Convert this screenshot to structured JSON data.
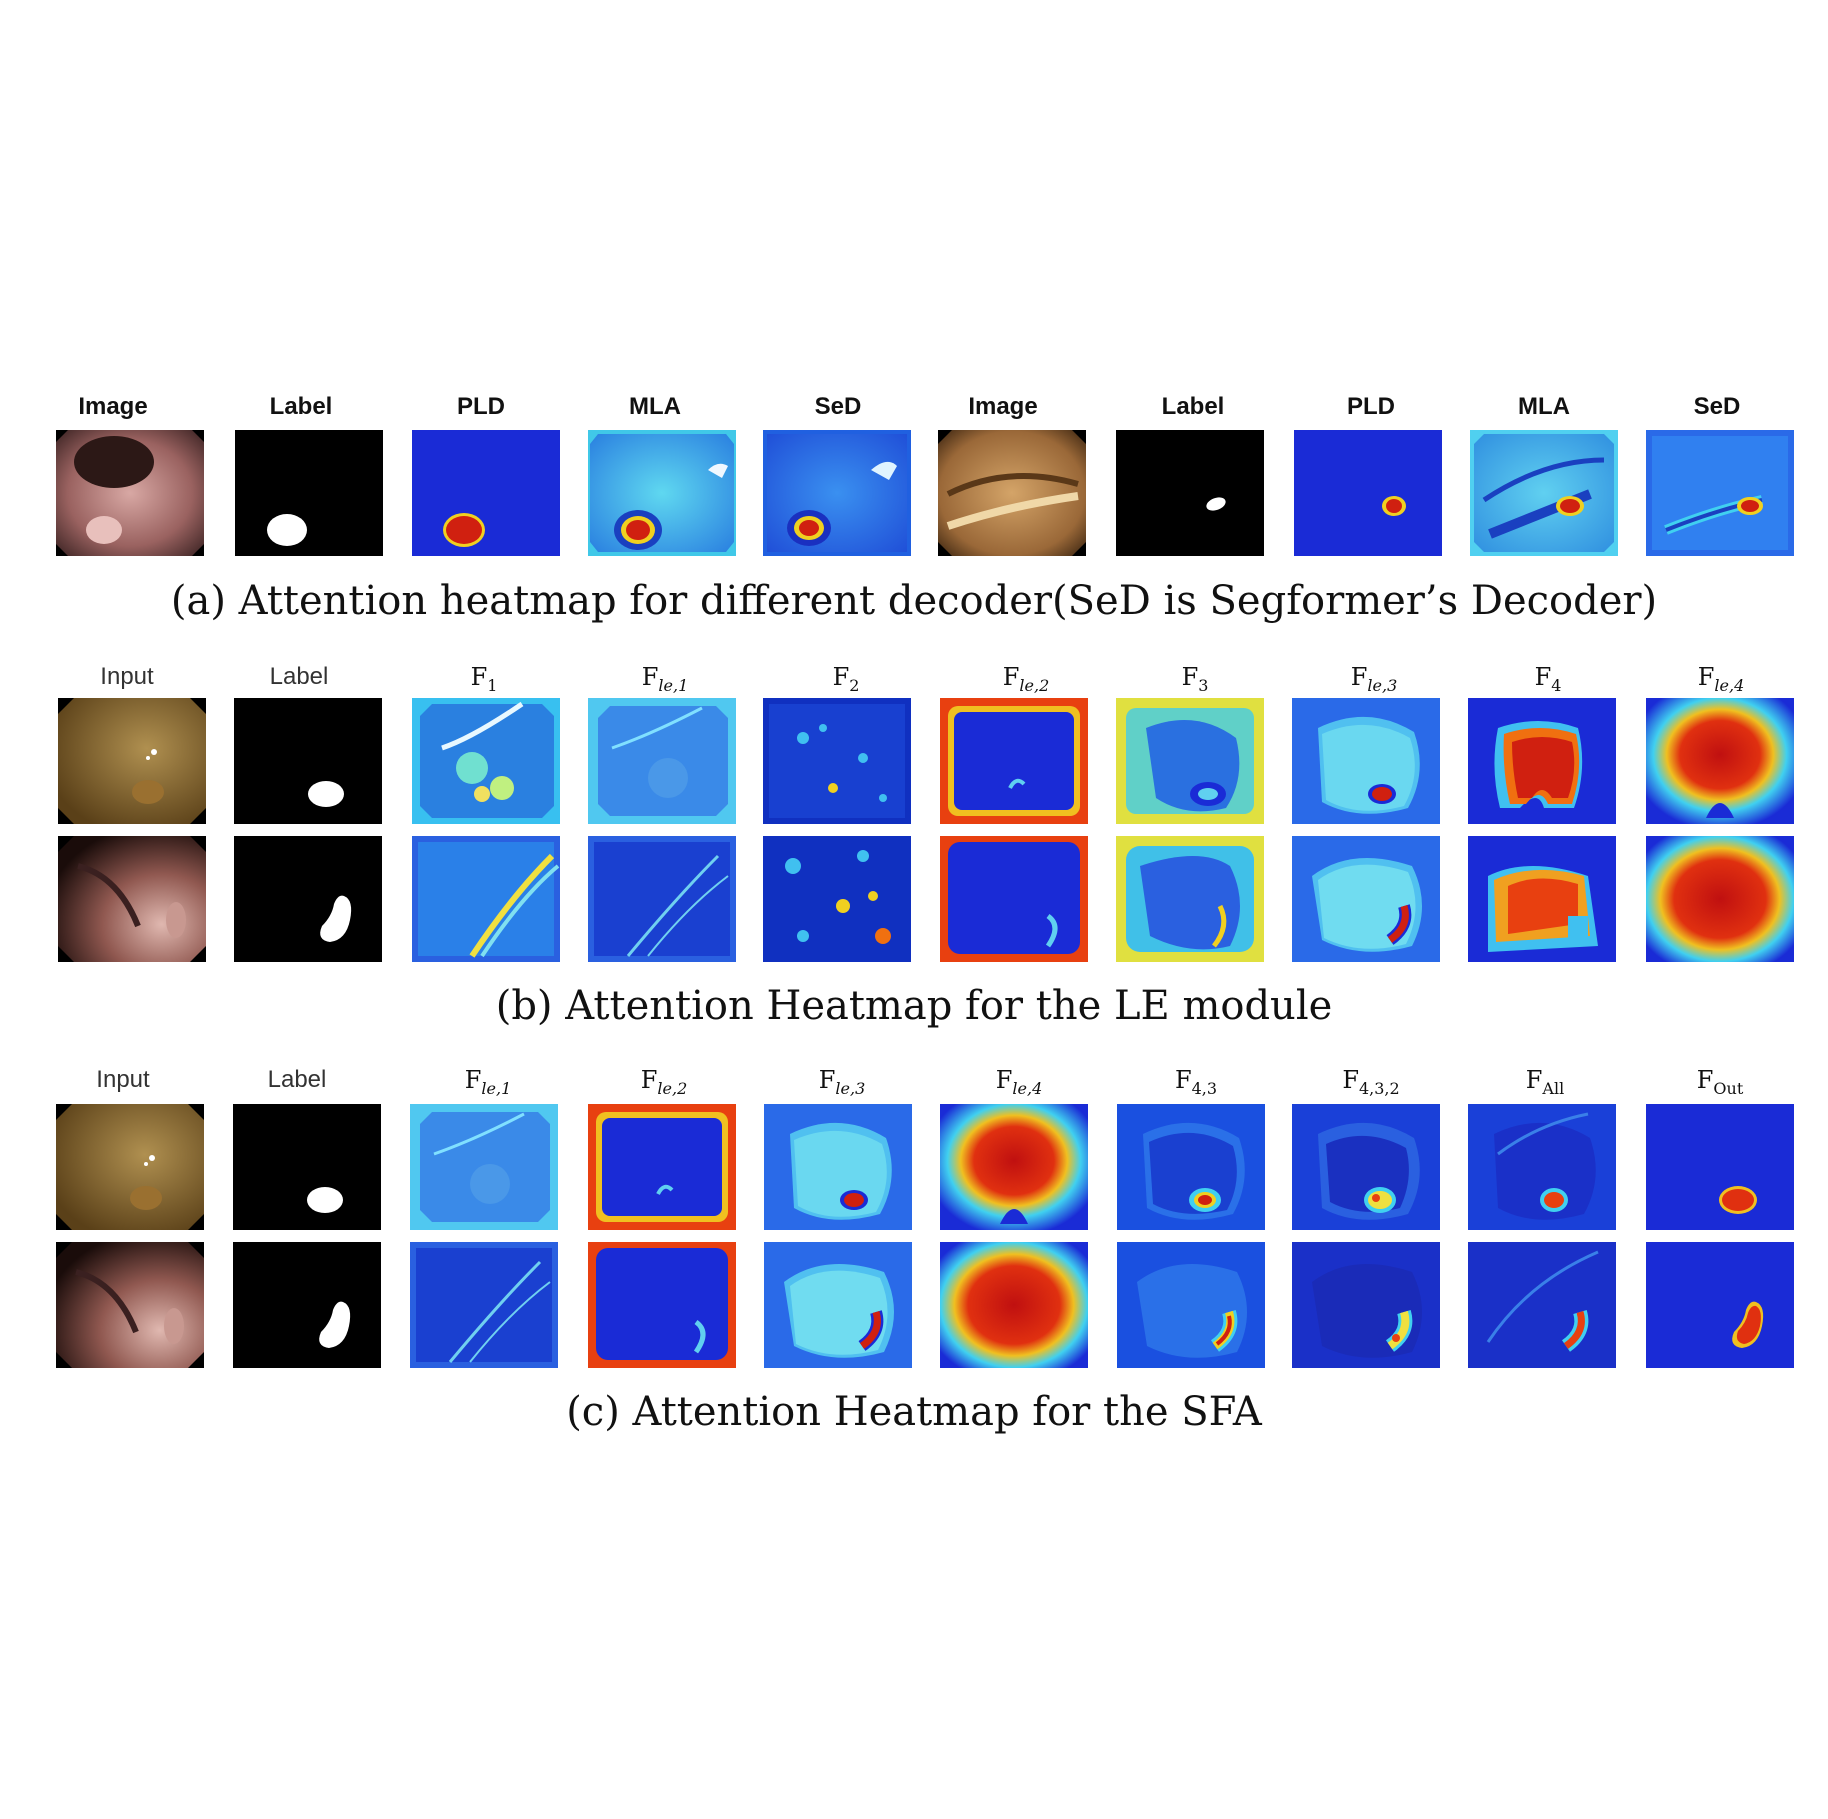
{
  "panel_a": {
    "headers": [
      "Image",
      "Label",
      "PLD",
      "MLA",
      "SeD",
      "Image",
      "Label",
      "PLD",
      "MLA",
      "SeD"
    ],
    "caption": "(a) Attention heatmap for different decoder(SeD is Segformer’s Decoder)"
  },
  "panel_b": {
    "headers": [
      {
        "base": "Input",
        "sub": ""
      },
      {
        "base": "Label",
        "sub": ""
      },
      {
        "base": "F",
        "sub": "1"
      },
      {
        "base": "F",
        "sub": "le,1"
      },
      {
        "base": "F",
        "sub": "2"
      },
      {
        "base": "F",
        "sub": "le,2"
      },
      {
        "base": "F",
        "sub": "3"
      },
      {
        "base": "F",
        "sub": "le,3"
      },
      {
        "base": "F",
        "sub": "4"
      },
      {
        "base": "F",
        "sub": "le,4"
      }
    ],
    "caption": "(b) Attention Heatmap for the LE module"
  },
  "panel_c": {
    "headers": [
      {
        "base": "Input",
        "sub": ""
      },
      {
        "base": "Label",
        "sub": ""
      },
      {
        "base": "F",
        "sub": "le,1"
      },
      {
        "base": "F",
        "sub": "le,2"
      },
      {
        "base": "F",
        "sub": "le,3"
      },
      {
        "base": "F",
        "sub": "le,4"
      },
      {
        "base": "F",
        "sub": "4,3"
      },
      {
        "base": "F",
        "sub": "4,3,2"
      },
      {
        "base": "F",
        "sub": "All"
      },
      {
        "base": "F",
        "sub": "Out"
      }
    ],
    "caption": "(c) Attention Heatmap for the SFA"
  },
  "colors": {
    "heat_low": "#1a2bd6",
    "heat_mid": "#29c8e8",
    "heat_high": "#e83010",
    "mask_fg": "#ffffff",
    "mask_bg": "#000000"
  }
}
